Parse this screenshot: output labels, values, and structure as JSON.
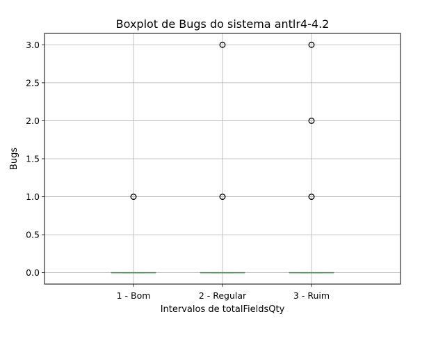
{
  "chart_data": {
    "type": "box",
    "title": "Boxplot de Bugs do sistema antlr4-4.2",
    "xlabel": "Intervalos de totalFieldsQty",
    "ylabel": "Bugs",
    "categories": [
      "1 - Bom",
      "2 - Regular",
      "3 - Ruim"
    ],
    "ylim": [
      -0.15,
      3.15
    ],
    "yticks": [
      0.0,
      0.5,
      1.0,
      1.5,
      2.0,
      2.5,
      3.0
    ],
    "ytick_labels": [
      "0.0",
      "0.5",
      "1.0",
      "1.5",
      "2.0",
      "2.5",
      "3.0"
    ],
    "grid": true,
    "boxes": [
      {
        "category": "1 - Bom",
        "min": 0,
        "q1": 0,
        "median": 0,
        "q3": 0,
        "max": 0,
        "outliers": [
          1
        ]
      },
      {
        "category": "2 - Regular",
        "min": 0,
        "q1": 0,
        "median": 0,
        "q3": 0,
        "max": 0,
        "outliers": [
          1,
          3
        ]
      },
      {
        "category": "3 - Ruim",
        "min": 0,
        "q1": 0,
        "median": 0,
        "q3": 0,
        "max": 0,
        "outliers": [
          1,
          2,
          3
        ]
      }
    ],
    "colors": {
      "box": "#1f77b4",
      "median": "#2ca02c",
      "grid": "#b0b0b0",
      "outlier": "#000000"
    }
  }
}
